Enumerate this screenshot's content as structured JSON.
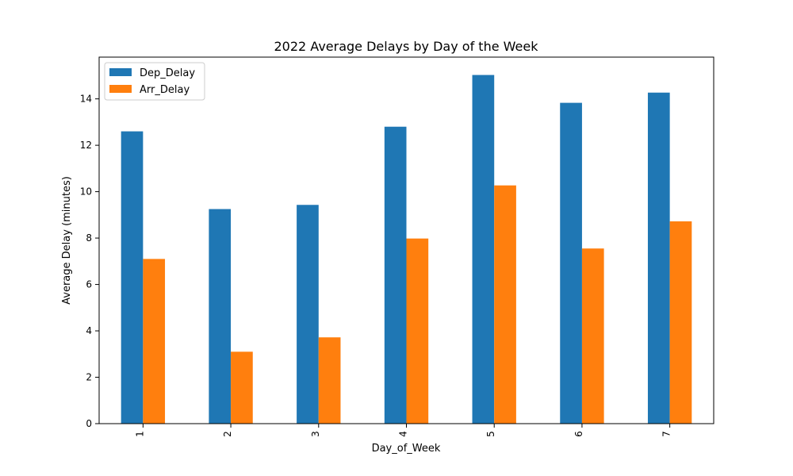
{
  "chart_data": {
    "type": "bar",
    "title": "2022 Average Delays by Day of the Week",
    "xlabel": "Day_of_Week",
    "ylabel": "Average Delay (minutes)",
    "categories": [
      "1",
      "2",
      "3",
      "4",
      "5",
      "6",
      "7"
    ],
    "series": [
      {
        "name": "Dep_Delay",
        "color": "#1f77b4",
        "values": [
          12.6,
          9.25,
          9.43,
          12.8,
          15.03,
          13.83,
          14.27
        ]
      },
      {
        "name": "Arr_Delay",
        "color": "#ff7f0e",
        "values": [
          7.1,
          3.1,
          3.72,
          7.98,
          10.27,
          7.55,
          8.72
        ]
      }
    ],
    "ylim": [
      0,
      15.8
    ],
    "yticks": [
      0,
      2,
      4,
      6,
      8,
      10,
      12,
      14
    ],
    "legend_position": "top-left",
    "grid": false
  }
}
